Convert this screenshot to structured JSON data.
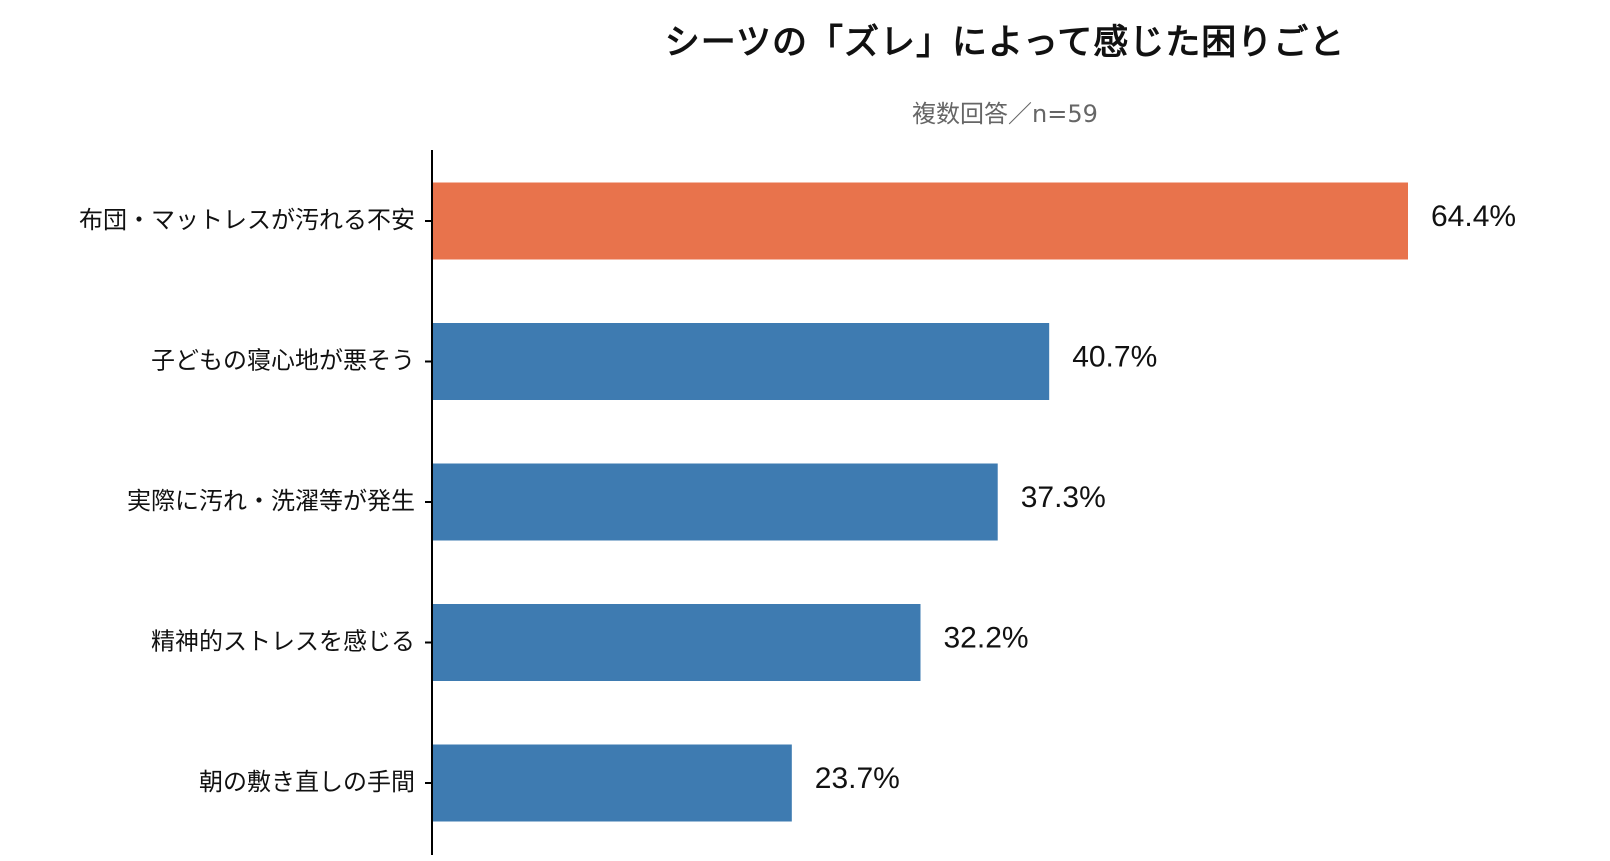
{
  "chart_data": {
    "type": "bar",
    "orientation": "horizontal",
    "title": "シーツの「ズレ」によって感じた困りごと",
    "subtitle": "複数回答／n=59",
    "categories": [
      "布団・マットレスが汚れる不安",
      "子どもの寝心地が悪そう",
      "実際に汚れ・洗濯等が発生",
      "精神的ストレスを感じる",
      "朝の敷き直しの手間"
    ],
    "values": [
      64.4,
      40.7,
      37.3,
      32.2,
      23.7
    ],
    "value_labels": [
      "64.4%",
      "40.7%",
      "37.3%",
      "32.2%",
      "23.7%"
    ],
    "xlim": [
      0,
      64.4
    ],
    "grid": false,
    "legend": "none",
    "colors": {
      "highlight": "#E8734C",
      "default": "#3E7BB1",
      "axis": "#000000"
    },
    "highlight_index": 0
  }
}
